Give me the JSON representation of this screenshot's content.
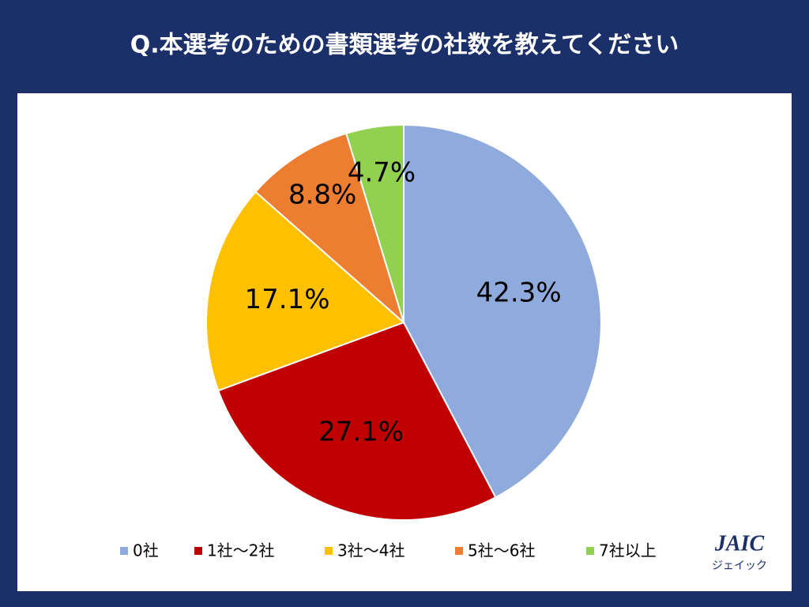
{
  "chart_data": {
    "type": "pie",
    "title": "Q.本選考のための書類選考の社数を教えてください",
    "categories": [
      "0社",
      "1社～2社",
      "3社～4社",
      "5社～6社",
      "7社以上"
    ],
    "values": [
      42.3,
      27.1,
      17.1,
      8.8,
      4.7
    ],
    "value_labels": [
      "42.3%",
      "27.1%",
      "17.1%",
      "8.8%",
      "4.7%"
    ],
    "colors": [
      "#8faadc",
      "#c00000",
      "#ffc000",
      "#ed7d31",
      "#92d050"
    ],
    "legend": "bottom"
  },
  "logo": {
    "name": "JAIC",
    "sub": "ジェイック"
  }
}
